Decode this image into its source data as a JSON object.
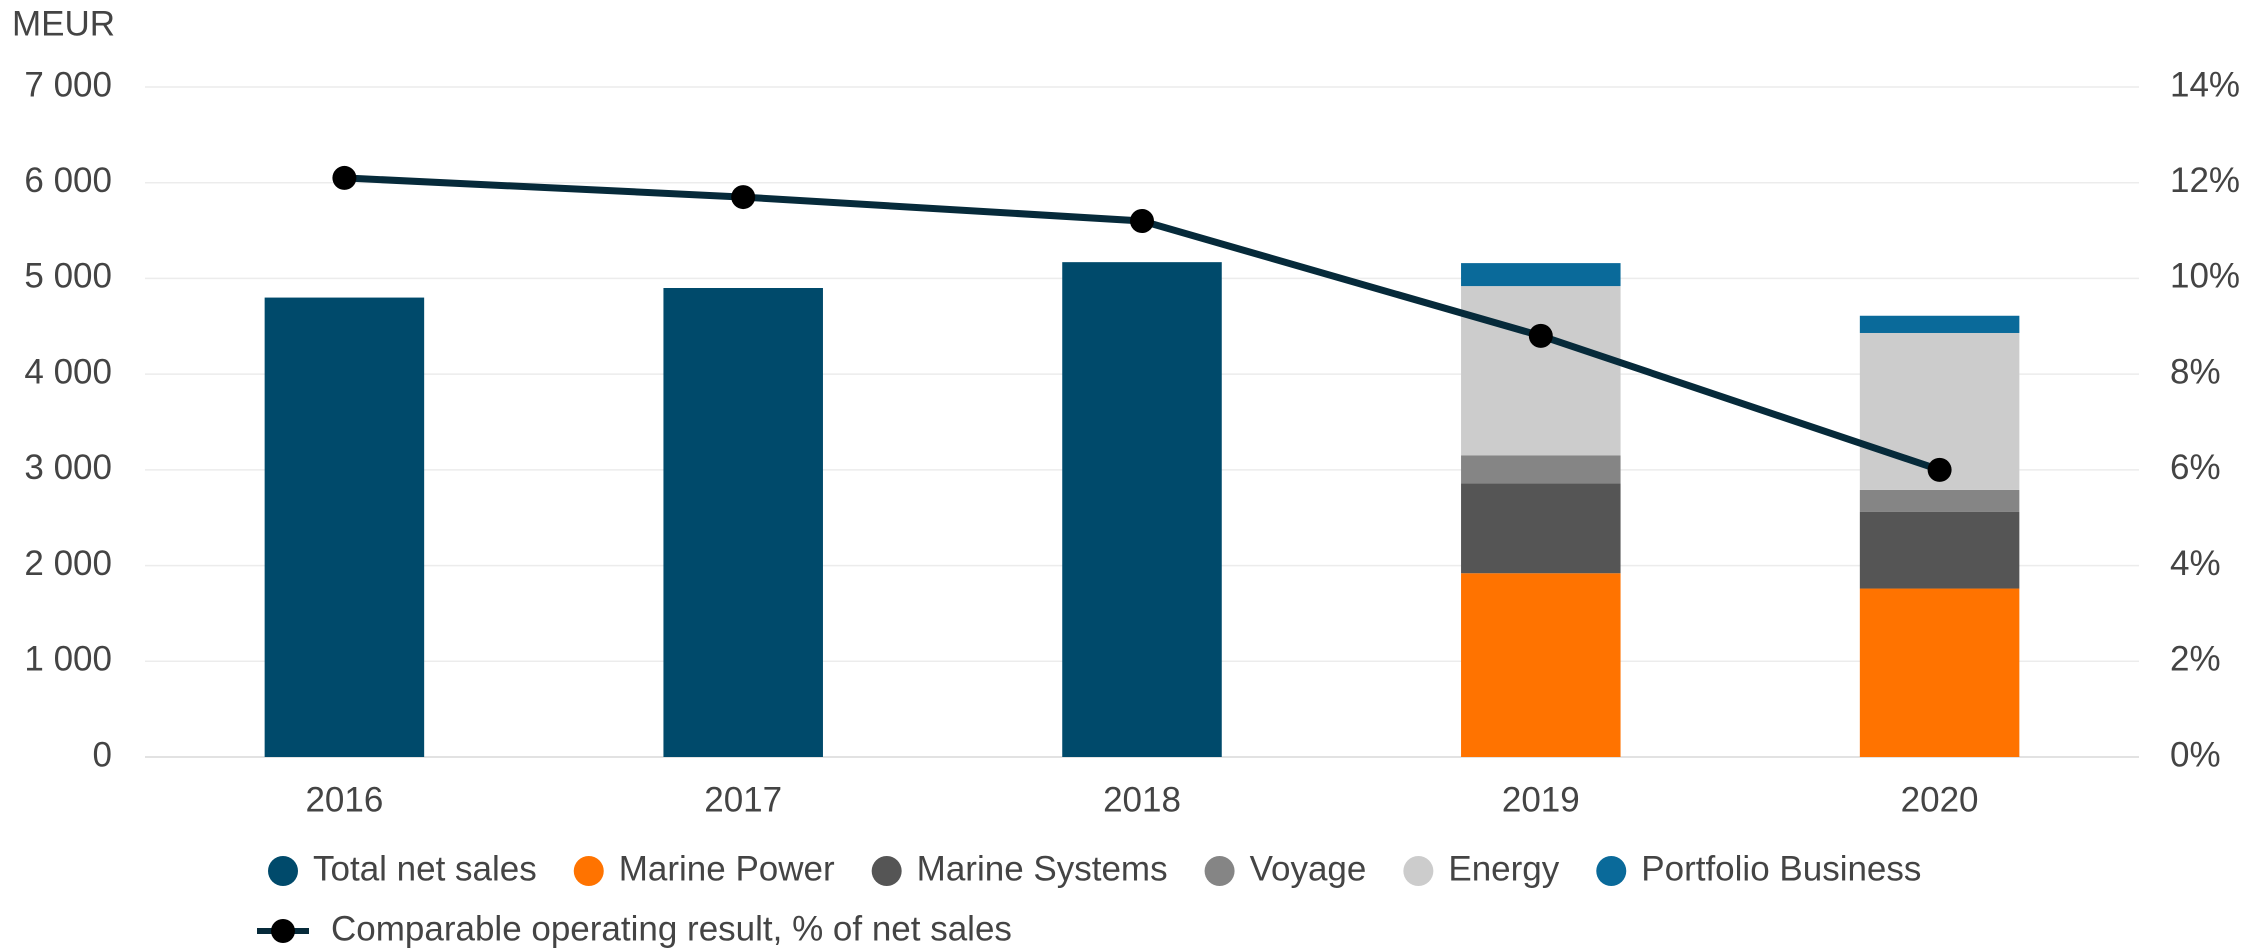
{
  "chart_data": {
    "type": "bar",
    "y_axis_label": "MEUR",
    "categories": [
      "2016",
      "2017",
      "2018",
      "2019",
      "2020"
    ],
    "series": [
      {
        "name": "Total net sales",
        "color": "#004a6b",
        "values": [
          4800,
          4900,
          5170,
          null,
          null
        ]
      },
      {
        "name": "Marine Power",
        "color": "#ff7300",
        "values": [
          null,
          null,
          null,
          1920,
          1760
        ]
      },
      {
        "name": "Marine Systems",
        "color": "#555555",
        "values": [
          null,
          null,
          null,
          940,
          800
        ]
      },
      {
        "name": "Voyage",
        "color": "#858585",
        "values": [
          null,
          null,
          null,
          290,
          230
        ]
      },
      {
        "name": "Energy",
        "color": "#cccccc",
        "values": [
          null,
          null,
          null,
          1770,
          1640
        ]
      },
      {
        "name": "Portfolio Business",
        "color": "#0a6a9a",
        "values": [
          null,
          null,
          null,
          240,
          180
        ]
      },
      {
        "name": "Comparable operating result, % of net sales",
        "color": "#062a3a",
        "type": "line",
        "axis": "y2",
        "values": [
          12.1,
          11.7,
          11.2,
          8.8,
          6.0
        ]
      }
    ],
    "stacked": true,
    "ylim": [
      0,
      7000
    ],
    "yticks": [
      0,
      {
        "value": 1000,
        "label": "1 000"
      },
      {
        "value": 2000,
        "label": "2 000"
      },
      {
        "value": 3000,
        "label": "3 000"
      },
      {
        "value": 4000,
        "label": "4 000"
      },
      {
        "value": 5000,
        "label": "5 000"
      },
      {
        "value": 6000,
        "label": "6 000"
      },
      {
        "value": 7000,
        "label": "7 000"
      }
    ],
    "y2lim": [
      0,
      14
    ],
    "y2ticks": [
      {
        "value": 0,
        "label": "0%"
      },
      {
        "value": 2,
        "label": "2%"
      },
      {
        "value": 4,
        "label": "4%"
      },
      {
        "value": 6,
        "label": "6%"
      },
      {
        "value": 8,
        "label": "8%"
      },
      {
        "value": 10,
        "label": "10%"
      },
      {
        "value": 12,
        "label": "12%"
      },
      {
        "value": 14,
        "label": "14%"
      }
    ],
    "grid": true
  }
}
